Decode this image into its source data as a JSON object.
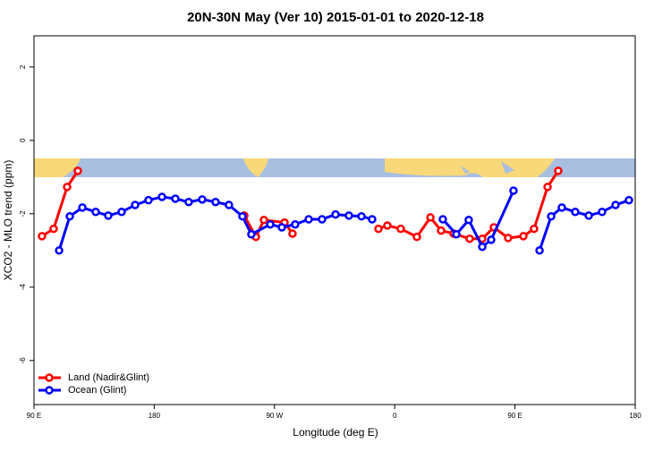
{
  "chart_data": {
    "type": "line",
    "title": "20N-30N May (Ver 10)   2015-01-01 to 2020-12-18",
    "x_label": "Longitude (deg E)",
    "y_label": "XCO2 - MLO trend (ppm)",
    "xlim": [
      90,
      540
    ],
    "xticks": [
      {
        "value": 90,
        "label": "90 E"
      },
      180,
      {
        "value": 270,
        "label": "90 W"
      },
      {
        "value": 360,
        "label": "0"
      },
      {
        "value": 450,
        "label": "90 E"
      },
      {
        "value": 540,
        "label": "180"
      }
    ],
    "ylim": [
      -7.2,
      2.85
    ],
    "yticks": [
      2,
      0,
      -2,
      -4,
      -6
    ],
    "legend": "bottom-left",
    "series": [
      {
        "name": "Land (Nadir&Glint)",
        "color": "#ff0000",
        "x": [
          96,
          104.7,
          114.8,
          122.8,
          null,
          247.4,
          256.1,
          262.1,
          277.5,
          283.5,
          null,
          347.8,
          354.5,
          364.5,
          376.6,
          386.7,
          394.7,
          404.1,
          416.1,
          425.5,
          434.2,
          444.9,
          456.3,
          464.3,
          474.4,
          482.4
        ],
        "values": [
          -2.61,
          -2.41,
          -1.27,
          -0.83,
          null,
          -2.05,
          -2.63,
          -2.17,
          -2.24,
          -2.54,
          null,
          -2.41,
          -2.32,
          -2.41,
          -2.63,
          -2.1,
          -2.46,
          -2.54,
          -2.68,
          -2.68,
          -2.37,
          -2.66,
          -2.61,
          -2.41,
          -1.27,
          -0.83
        ]
      },
      {
        "name": "Ocean (Glint)",
        "color": "#0000ff",
        "x": [
          108.8,
          116.8,
          126.2,
          136.2,
          145.6,
          155.6,
          165.7,
          175.7,
          185.8,
          195.8,
          205.8,
          215.9,
          225.9,
          235.9,
          246,
          252.7,
          266.8,
          275.5,
          285.5,
          295.6,
          305.6,
          315.7,
          325.7,
          335.1,
          343.1,
          null,
          396,
          406.1,
          415.4,
          425.5,
          432.2,
          448.9,
          null,
          468.4,
          477.1,
          485.1,
          495.1,
          505.2,
          515.2,
          525.3,
          535.3
        ],
        "values": [
          -3.0,
          -2.07,
          -1.83,
          -1.95,
          -2.05,
          -1.95,
          -1.76,
          -1.63,
          -1.54,
          -1.59,
          -1.68,
          -1.61,
          -1.68,
          -1.76,
          -2.07,
          -2.56,
          -2.29,
          -2.37,
          -2.29,
          -2.15,
          -2.15,
          -2.02,
          -2.05,
          -2.07,
          -2.15,
          null,
          -2.15,
          -2.56,
          -2.17,
          -2.9,
          -2.71,
          -1.37,
          null,
          -3.0,
          -2.07,
          -1.83,
          -1.95,
          -2.05,
          -1.95,
          -1.76,
          -1.63
        ]
      }
    ]
  }
}
